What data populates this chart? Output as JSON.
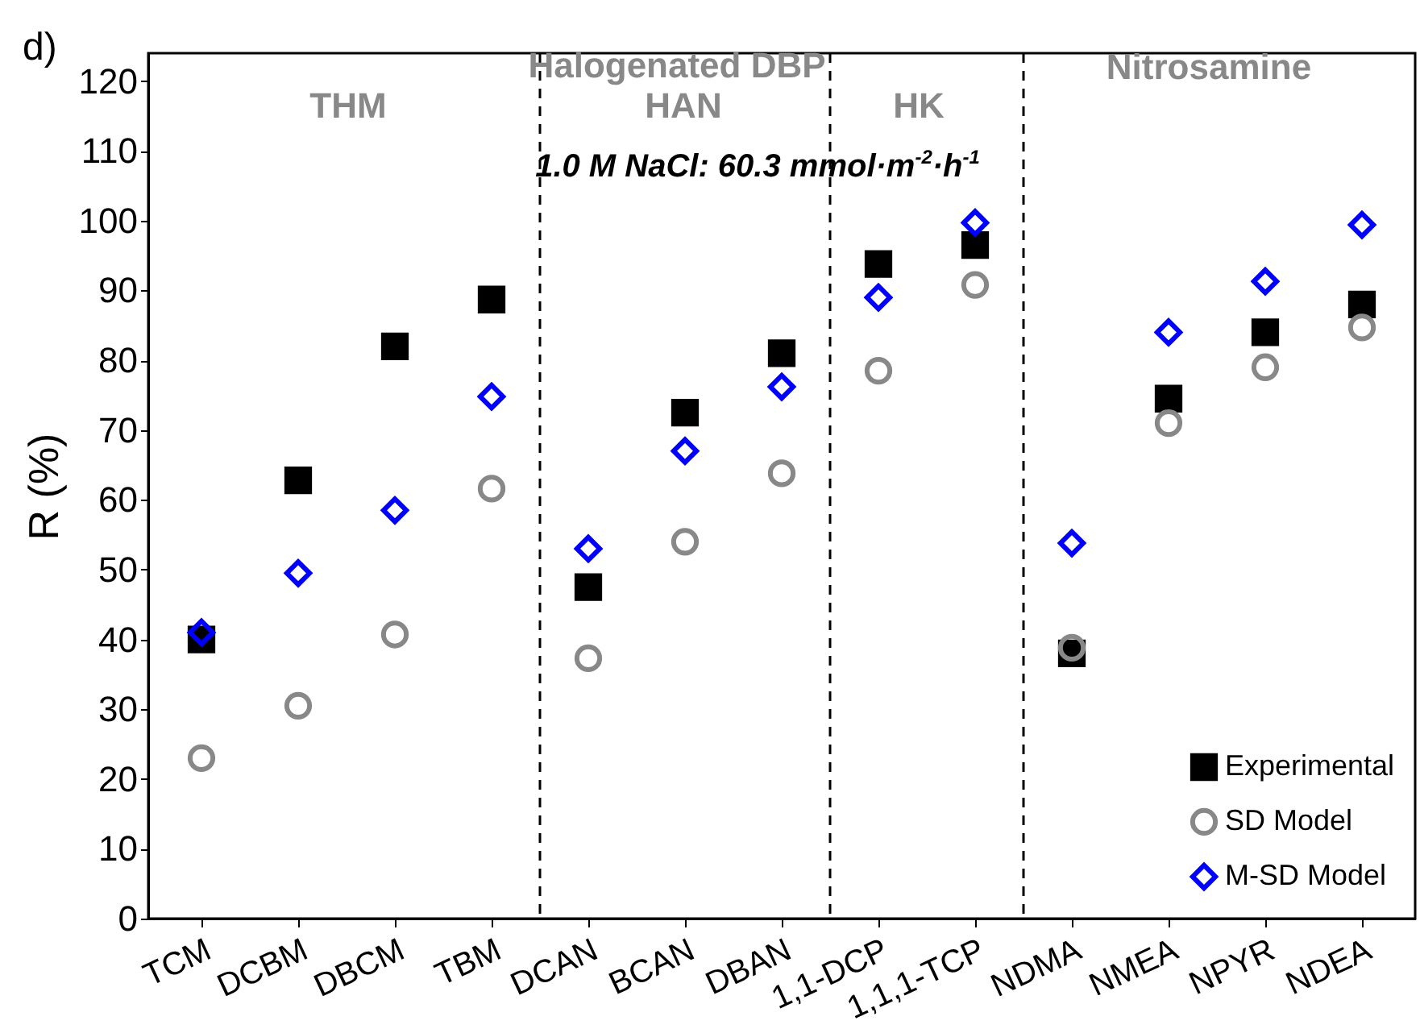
{
  "chart_data": {
    "type": "scatter",
    "ylabel": "R (%)",
    "categories": [
      "TCM",
      "DCBM",
      "DBCM",
      "TBM",
      "DCAN",
      "BCAN",
      "DBAN",
      "1,1-DCP",
      "1,1,1-TCP",
      "NDMA",
      "NMEA",
      "NPYR",
      "NDEA"
    ],
    "ylim": [
      0,
      124
    ],
    "yticks": [
      0,
      10,
      20,
      30,
      40,
      50,
      60,
      70,
      80,
      90,
      100,
      110,
      120
    ],
    "series": [
      {
        "name": "Experimental",
        "color": "#000000",
        "marker": "square",
        "values": [
          40,
          62.8,
          82,
          88.7,
          47.5,
          72.5,
          81,
          93.8,
          96.5,
          38,
          74.5,
          84,
          88
        ]
      },
      {
        "name": "SD Model",
        "color": "#888888",
        "marker": "circle",
        "values": [
          23,
          30.5,
          40.7,
          61.6,
          37.3,
          54,
          63.8,
          78.5,
          90.8,
          38.8,
          71,
          79,
          84.7
        ]
      },
      {
        "name": "M-SD Model",
        "color": "#0000ff",
        "marker": "diamond",
        "values": [
          41,
          49.5,
          58.5,
          74.8,
          53,
          67,
          76.2,
          89,
          99.7,
          53.8,
          84,
          91.3,
          99.4
        ]
      }
    ],
    "annotations": [
      "d)",
      "THM",
      "Halogenated DBP",
      "HAN",
      "HK",
      "Nitrosamine",
      "1.0 M NaCl: 60.3 mmol·m$^{-2}$·h$^{-1}$"
    ],
    "legend": "bottom right",
    "grid": false
  }
}
